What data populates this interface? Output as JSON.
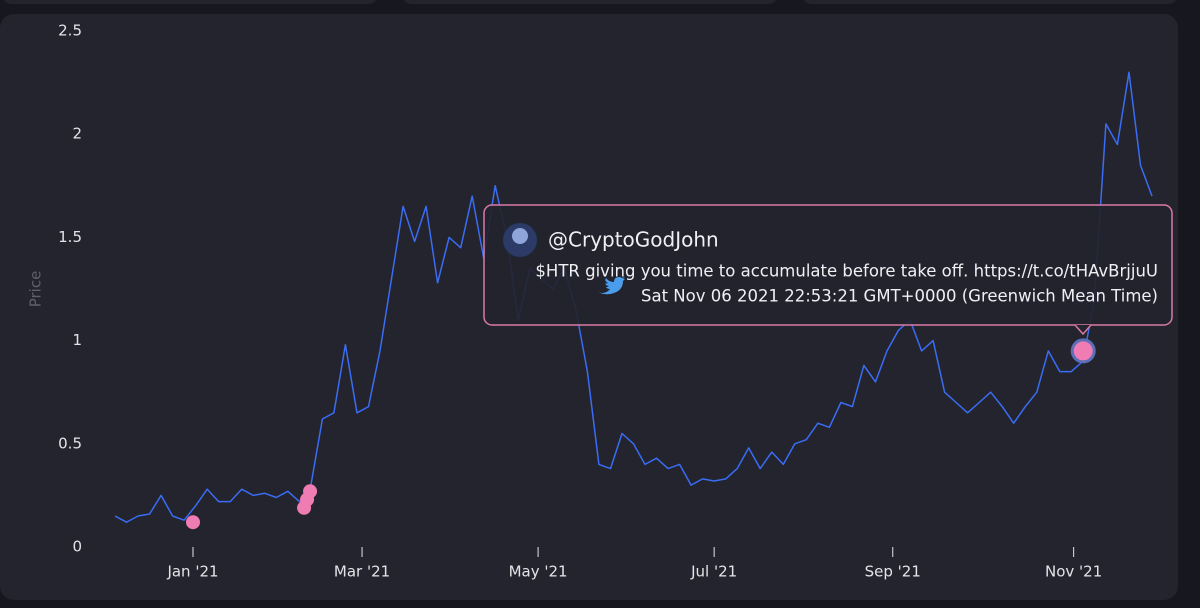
{
  "chart_data": {
    "type": "line",
    "ylabel": "Price",
    "color": "#3a6cf4",
    "ylim": [
      0,
      2.5
    ],
    "yticks": [
      0,
      0.5,
      1,
      1.5,
      2,
      2.5
    ],
    "xlim": [
      0,
      90
    ],
    "xticks": [
      {
        "value": 6.77,
        "label": "Jan '21"
      },
      {
        "value": 21.44,
        "label": "Mar '21"
      },
      {
        "value": 36.72,
        "label": "May '21"
      },
      {
        "value": 52.0,
        "label": "Jul '21"
      },
      {
        "value": 67.5,
        "label": "Sep '21"
      },
      {
        "value": 83.2,
        "label": "Nov '21"
      }
    ],
    "values": [
      0.15,
      0.12,
      0.15,
      0.16,
      0.25,
      0.15,
      0.13,
      0.2,
      0.28,
      0.22,
      0.22,
      0.28,
      0.25,
      0.26,
      0.24,
      0.27,
      0.22,
      0.3,
      0.62,
      0.65,
      0.98,
      0.65,
      0.68,
      0.95,
      1.3,
      1.65,
      1.48,
      1.65,
      1.28,
      1.5,
      1.45,
      1.7,
      1.4,
      1.75,
      1.5,
      1.1,
      1.35,
      1.3,
      1.25,
      1.35,
      1.15,
      0.85,
      0.4,
      0.38,
      0.55,
      0.5,
      0.4,
      0.43,
      0.38,
      0.4,
      0.3,
      0.33,
      0.32,
      0.33,
      0.38,
      0.48,
      0.38,
      0.46,
      0.4,
      0.5,
      0.52,
      0.6,
      0.58,
      0.7,
      0.68,
      0.88,
      0.8,
      0.95,
      1.05,
      1.1,
      0.95,
      1.0,
      0.75,
      0.7,
      0.65,
      0.7,
      0.75,
      0.68,
      0.6,
      0.68,
      0.75,
      0.95,
      0.85,
      0.85,
      0.9,
      1.2,
      2.05,
      1.95,
      2.3,
      1.85,
      1.7
    ],
    "markers": {
      "color": "#f07cb4",
      "x": [
        6.77,
        16.41,
        16.67,
        16.93,
        84.03
      ],
      "values": [
        0.12,
        0.19,
        0.23,
        0.27,
        0.95
      ]
    },
    "tooltip": {
      "user": "@CryptoGodJohn",
      "text": "$HTR giving you time to accumulate before take off. https://t.co/tHAvBrjjuU",
      "date": "Sat Nov 06 2021 22:53:21 GMT+0000 (Greenwich Mean Time)"
    }
  }
}
